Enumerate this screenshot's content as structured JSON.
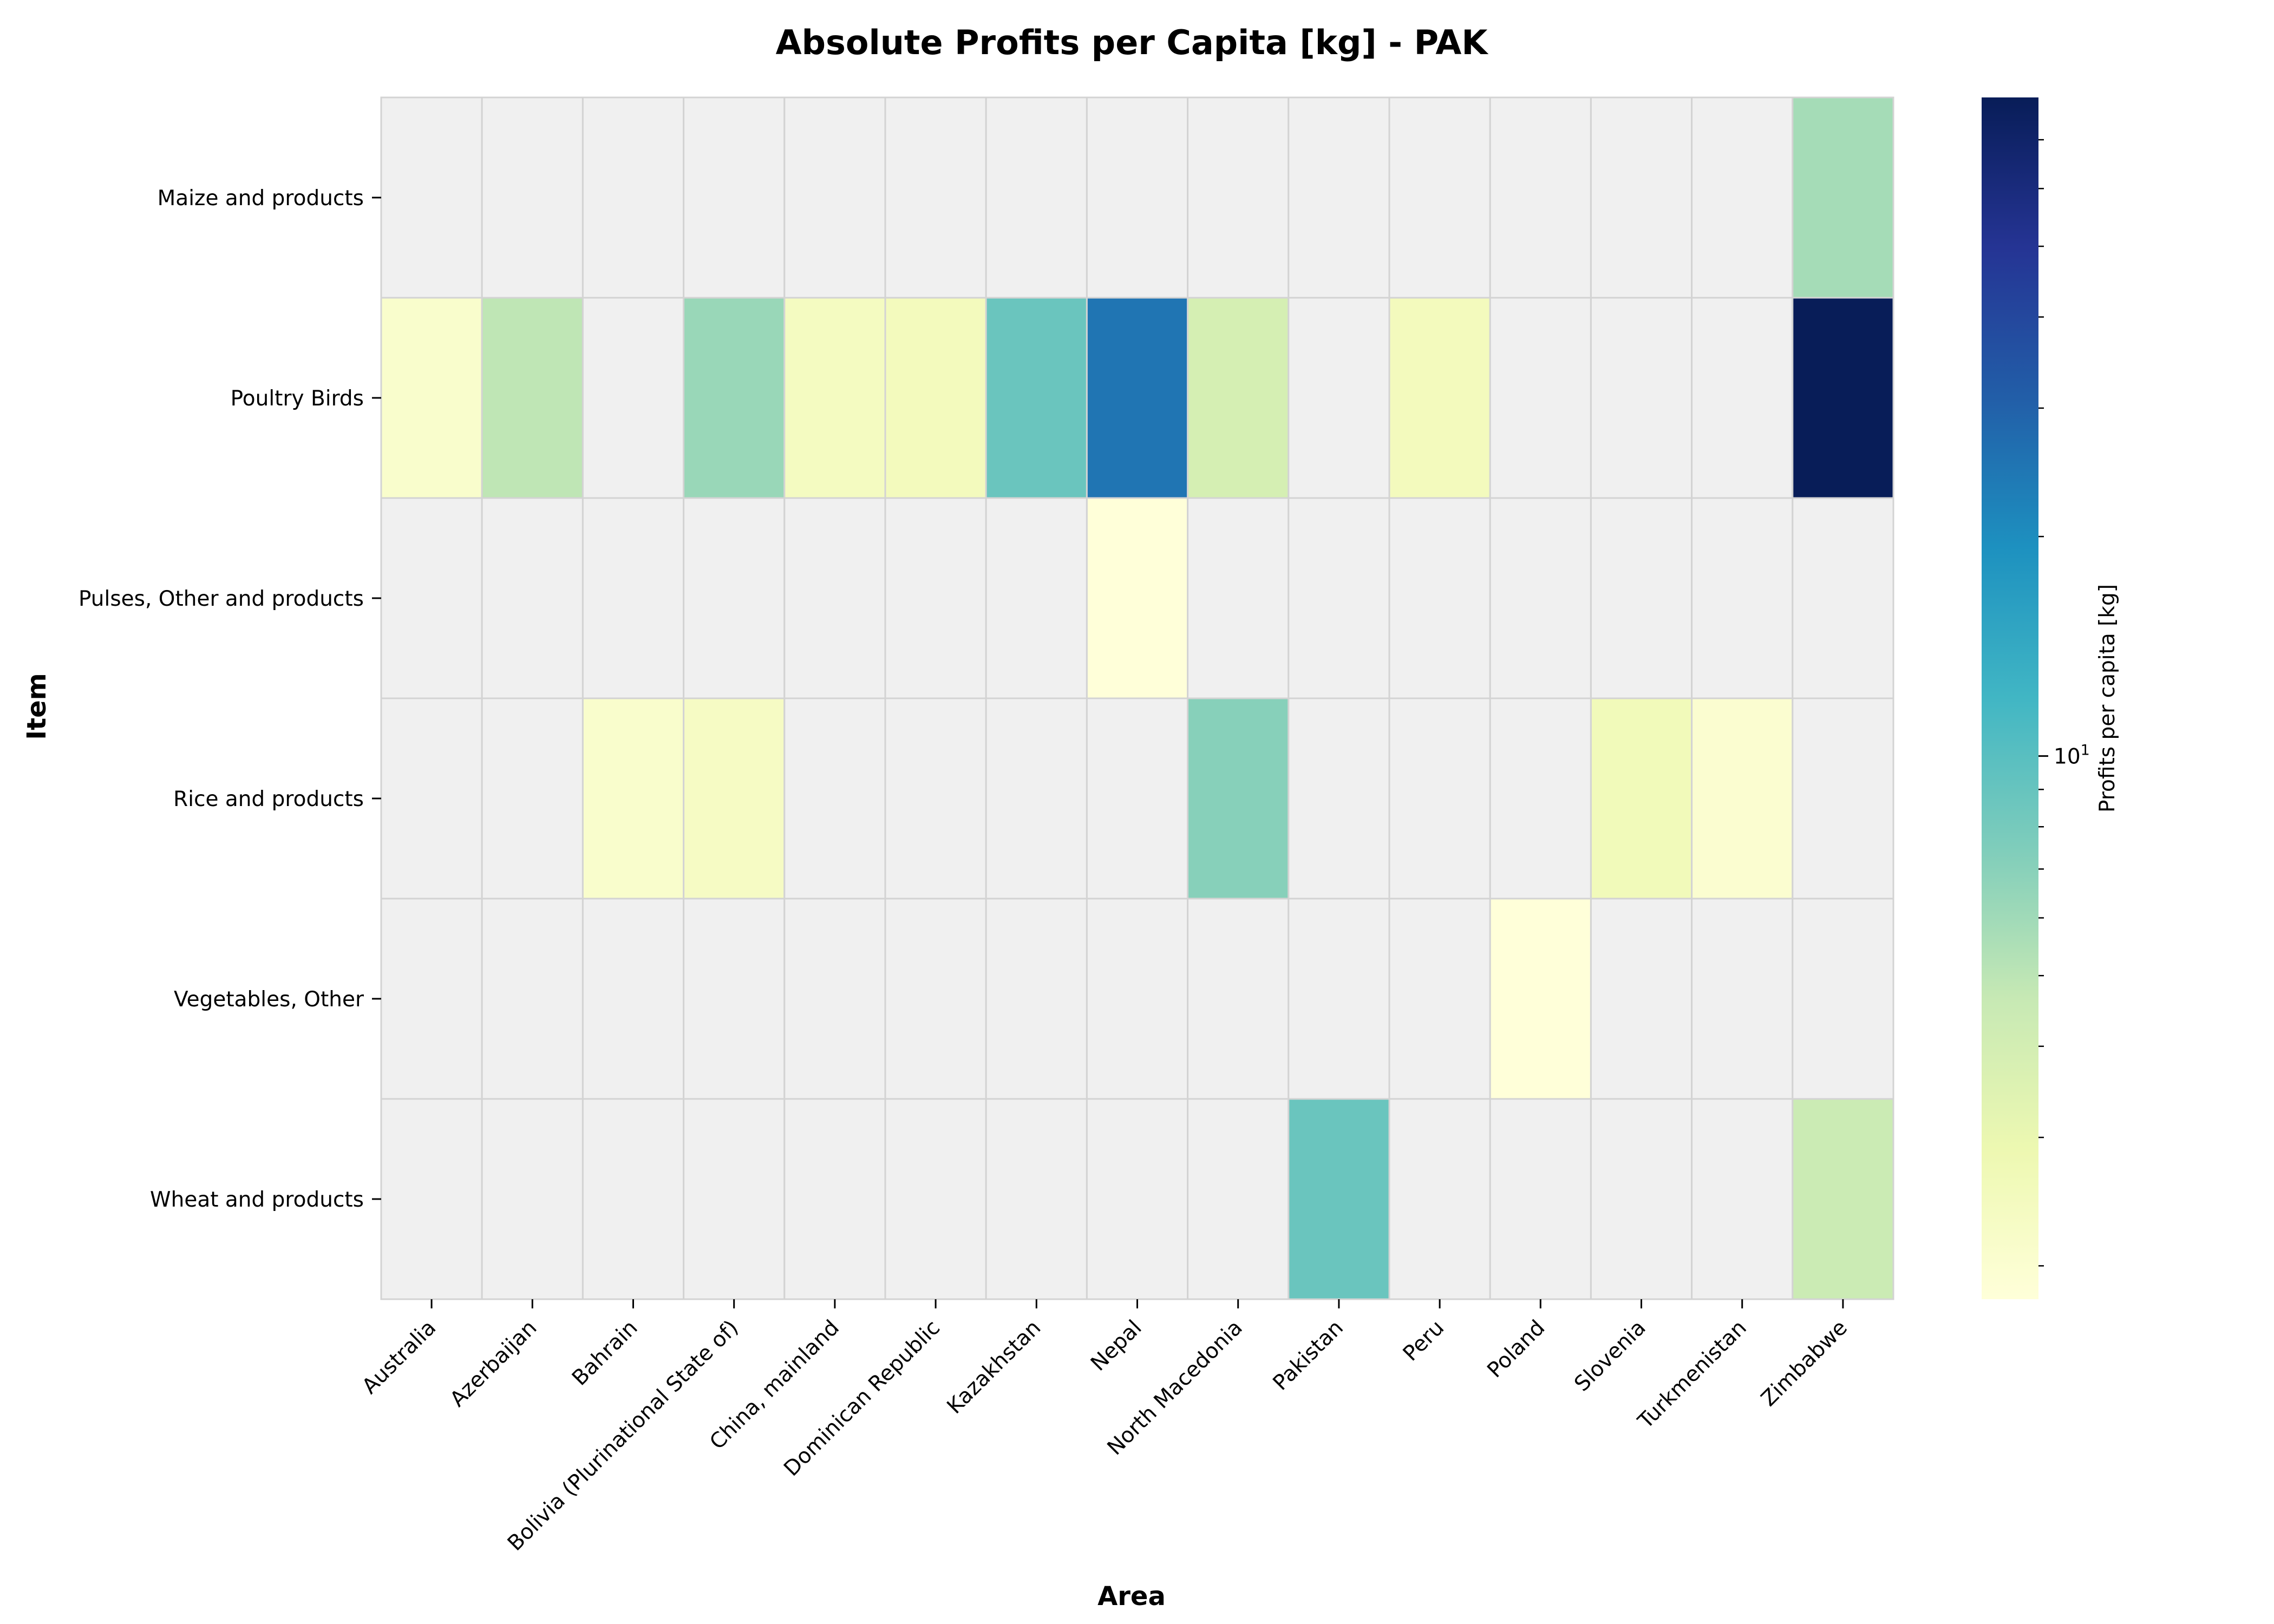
{
  "chart_data": {
    "type": "heatmap",
    "title": "Absolute Profits per Capita [kg] - PAK",
    "xlabel": "Area",
    "ylabel": "Item",
    "colorbar_label": "Profits per capita [kg]",
    "colorbar_scale": "log",
    "colorbar_range": [
      1.8,
      80
    ],
    "colorbar_major_tick": {
      "value": 10,
      "base": "10",
      "exponent": "1"
    },
    "colorbar_minor_ticks": [
      2,
      3,
      4,
      5,
      6,
      7,
      8,
      9,
      20,
      30,
      40,
      50,
      60,
      70
    ],
    "colormap": "YlGnBu",
    "missing_color": "#f0f0f0",
    "gridline_color": "#d3d3d3",
    "x_categories": [
      "Australia",
      "Azerbaijan",
      "Bahrain",
      "Bolivia (Plurinational State of)",
      "China, mainland",
      "Dominican Republic",
      "Kazakhstan",
      "Nepal",
      "North Macedonia",
      "Pakistan",
      "Peru",
      "Poland",
      "Slovenia",
      "Turkmenistan",
      "Zimbabwe"
    ],
    "y_categories": [
      "Maize and products",
      "Poultry Birds",
      "Pulses, Other and products",
      "Rice and products",
      "Vegetables, Other",
      "Wheat and products"
    ],
    "values": [
      [
        null,
        null,
        null,
        null,
        null,
        null,
        null,
        null,
        null,
        null,
        null,
        null,
        null,
        null,
        5.8
      ],
      [
        2.1,
        4.9,
        null,
        6.3,
        2.4,
        2.5,
        8.8,
        25,
        3.9,
        null,
        2.5,
        null,
        null,
        null,
        80
      ],
      [
        null,
        null,
        null,
        null,
        null,
        null,
        null,
        1.8,
        null,
        null,
        null,
        null,
        null,
        null,
        null
      ],
      [
        null,
        null,
        2.1,
        2.3,
        null,
        null,
        null,
        null,
        7.1,
        null,
        null,
        null,
        2.6,
        2.0,
        null
      ],
      [
        null,
        null,
        null,
        null,
        null,
        null,
        null,
        null,
        null,
        null,
        null,
        1.8,
        null,
        null,
        null
      ],
      [
        null,
        null,
        null,
        null,
        null,
        null,
        null,
        null,
        null,
        8.8,
        null,
        null,
        null,
        null,
        4.4
      ]
    ]
  }
}
